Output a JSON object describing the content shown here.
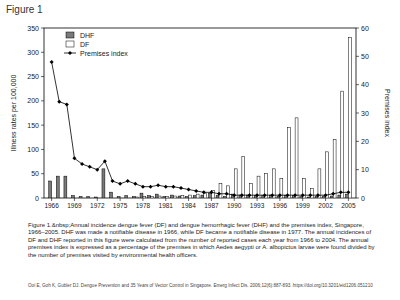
{
  "page": {
    "heading": "Figure 1",
    "caption": "Figure 1.&nbsp;Annual incidence dengue fever (DF) and dengue hemorrhagic fever (DHF) and the premises index, Singapore, 1966–2005. DHF was made a notifiable disease in 1966, while DF became a notifiable disease in 1977. The annual incidences of DF and DHF reported in this figure were calculated from the number of reported cases each year from 1966 to 2004. The annual premises index is expressed as a percentage of the premises in which Aedes aegypti or A. albopictus larvae were found divided by the number of premises visited by environmental health officers.",
    "citation": "Ooi E, Goh K, Gubler DJ. Dengue Prevention and 35 Years of Vector Control in Singapore. Emerg Infect Dis. 2006;12(6):887-893. https://doi.org/10.3201/eid1206.051210"
  },
  "chart_data": {
    "type": "bar",
    "y_label": "Illness rates per 100,000",
    "y2_label": "Premises index",
    "x": [
      1966,
      1967,
      1968,
      1969,
      1970,
      1971,
      1972,
      1973,
      1974,
      1975,
      1976,
      1977,
      1978,
      1979,
      1980,
      1981,
      1982,
      1983,
      1984,
      1985,
      1986,
      1987,
      1988,
      1989,
      1990,
      1991,
      1992,
      1993,
      1994,
      1995,
      1996,
      1997,
      1998,
      1999,
      2000,
      2001,
      2002,
      2003,
      2004,
      2005
    ],
    "xlim": [
      1965,
      2006
    ],
    "xticks": [
      1966,
      1969,
      1972,
      1975,
      1978,
      1981,
      1984,
      1987,
      1990,
      1993,
      1996,
      1999,
      2002,
      2005
    ],
    "ylim": [
      0,
      350
    ],
    "yticks": [
      0,
      50,
      100,
      150,
      200,
      250,
      300,
      350
    ],
    "y2lim": [
      0,
      60
    ],
    "y2ticks": [
      0,
      10,
      20,
      30,
      40,
      50,
      60
    ],
    "legend": "upper-left",
    "series": [
      {
        "name": "DHF",
        "type": "bar",
        "color": "#7a7a7a",
        "values": [
          35,
          45,
          45,
          5,
          3,
          3,
          2,
          60,
          12,
          3,
          5,
          3,
          10,
          5,
          8,
          3,
          6,
          4,
          3,
          5,
          6,
          10,
          5,
          3,
          8,
          6,
          6,
          5,
          5,
          6,
          4,
          5,
          5,
          3,
          2,
          3,
          4,
          4,
          6,
          8
        ]
      },
      {
        "name": "DF",
        "type": "bar",
        "color": "#ffffff",
        "values": [
          null,
          null,
          null,
          null,
          null,
          null,
          null,
          null,
          null,
          null,
          null,
          2,
          3,
          3,
          4,
          3,
          4,
          5,
          6,
          8,
          10,
          15,
          30,
          25,
          60,
          85,
          30,
          45,
          50,
          60,
          40,
          145,
          165,
          40,
          20,
          60,
          95,
          120,
          220,
          330
        ]
      },
      {
        "name": "Premises index",
        "type": "line",
        "axis": "y2",
        "color": "#000000",
        "marker": "diamond",
        "values": [
          48,
          34,
          33,
          14,
          12,
          11,
          10,
          13,
          6,
          5,
          6,
          5,
          4,
          4,
          4.5,
          4,
          4,
          3.5,
          3,
          2.5,
          2,
          2,
          1.5,
          1.5,
          1,
          1,
          1,
          1,
          1,
          1,
          1,
          1,
          1,
          1,
          1,
          1,
          1,
          1.5,
          2,
          2
        ]
      }
    ]
  }
}
